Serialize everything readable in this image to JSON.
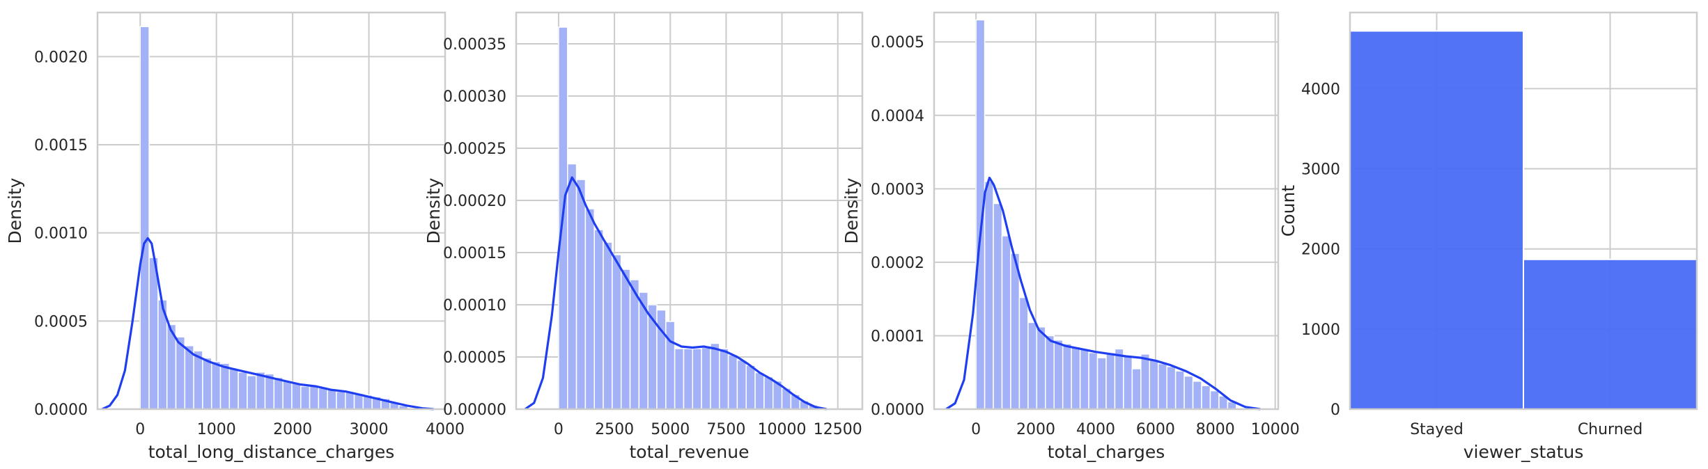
{
  "chart_data": [
    {
      "type": "bar",
      "subtype": "histogram+kde",
      "xlabel": "total_long_distance_charges",
      "ylabel": "Density",
      "xlim": [
        -560,
        4000
      ],
      "ylim": [
        0,
        0.00225
      ],
      "xticks": [
        0,
        1000,
        2000,
        3000,
        4000
      ],
      "xtick_labels": [
        "0",
        "1000",
        "2000",
        "3000",
        "4000"
      ],
      "yticks": [
        0,
        0.0005,
        0.001,
        0.0015,
        0.002
      ],
      "ytick_labels": [
        "0.0000",
        "0.0005",
        "0.0010",
        "0.0015",
        "0.0020"
      ],
      "grid": true,
      "bar_color": "#a3b2f7",
      "line_color": "#1f3ef0",
      "bin_width": 117,
      "bins": [
        {
          "x": 0,
          "v": 0.00217
        },
        {
          "x": 117,
          "v": 0.00086
        },
        {
          "x": 234,
          "v": 0.00062
        },
        {
          "x": 351,
          "v": 0.00048
        },
        {
          "x": 468,
          "v": 0.00041
        },
        {
          "x": 585,
          "v": 0.00036
        },
        {
          "x": 702,
          "v": 0.00033
        },
        {
          "x": 819,
          "v": 0.00029
        },
        {
          "x": 936,
          "v": 0.00027
        },
        {
          "x": 1053,
          "v": 0.00026
        },
        {
          "x": 1170,
          "v": 0.00023
        },
        {
          "x": 1287,
          "v": 0.00021
        },
        {
          "x": 1404,
          "v": 0.00019
        },
        {
          "x": 1521,
          "v": 0.00021
        },
        {
          "x": 1638,
          "v": 0.0002
        },
        {
          "x": 1755,
          "v": 0.00018
        },
        {
          "x": 1872,
          "v": 0.00016
        },
        {
          "x": 1989,
          "v": 0.00015
        },
        {
          "x": 2106,
          "v": 0.00013
        },
        {
          "x": 2223,
          "v": 0.00013
        },
        {
          "x": 2340,
          "v": 0.00012
        },
        {
          "x": 2457,
          "v": 0.00011
        },
        {
          "x": 2574,
          "v": 0.0001
        },
        {
          "x": 2691,
          "v": 0.0001
        },
        {
          "x": 2808,
          "v": 9e-05
        },
        {
          "x": 2925,
          "v": 8e-05
        },
        {
          "x": 3042,
          "v": 7e-05
        },
        {
          "x": 3159,
          "v": 6e-05
        },
        {
          "x": 3276,
          "v": 4e-05
        },
        {
          "x": 3393,
          "v": 2e-05
        }
      ],
      "kde": [
        [
          -500,
          0.0
        ],
        [
          -400,
          2e-05
        ],
        [
          -300,
          8e-05
        ],
        [
          -200,
          0.00022
        ],
        [
          -100,
          0.0005
        ],
        [
          0,
          0.00082
        ],
        [
          50,
          0.00094
        ],
        [
          100,
          0.00097
        ],
        [
          150,
          0.00094
        ],
        [
          200,
          0.00082
        ],
        [
          300,
          0.00057
        ],
        [
          400,
          0.00045
        ],
        [
          500,
          0.00038
        ],
        [
          700,
          0.00031
        ],
        [
          900,
          0.00027
        ],
        [
          1100,
          0.00024
        ],
        [
          1300,
          0.00022
        ],
        [
          1500,
          0.0002
        ],
        [
          1700,
          0.00018
        ],
        [
          1900,
          0.00016
        ],
        [
          2100,
          0.00014
        ],
        [
          2300,
          0.00013
        ],
        [
          2500,
          0.00011
        ],
        [
          2700,
          0.0001
        ],
        [
          2900,
          8e-05
        ],
        [
          3100,
          6e-05
        ],
        [
          3300,
          4e-05
        ],
        [
          3500,
          2e-05
        ],
        [
          3700,
          5e-06
        ],
        [
          3850,
          0.0
        ]
      ]
    },
    {
      "type": "bar",
      "subtype": "histogram+kde",
      "xlabel": "total_revenue",
      "ylabel": "Density",
      "xlim": [
        -1900,
        13600
      ],
      "ylim": [
        0,
        0.00038
      ],
      "xticks": [
        0,
        2500,
        5000,
        7500,
        10000,
        12500
      ],
      "xtick_labels": [
        "0",
        "2500",
        "5000",
        "7500",
        "10000",
        "12500"
      ],
      "yticks": [
        0,
        5e-05,
        0.0001,
        0.00015,
        0.0002,
        0.00025,
        0.0003,
        0.00035
      ],
      "ytick_labels": [
        "0.00000",
        "0.00005",
        "0.00010",
        "0.00015",
        "0.00020",
        "0.00025",
        "0.00030",
        "0.00035"
      ],
      "grid": true,
      "bar_color": "#a3b2f7",
      "line_color": "#1f3ef0",
      "bin_width": 400,
      "bins": [
        {
          "x": 0,
          "v": 0.000366
        },
        {
          "x": 400,
          "v": 0.000235
        },
        {
          "x": 800,
          "v": 0.00022
        },
        {
          "x": 1200,
          "v": 0.000192
        },
        {
          "x": 1600,
          "v": 0.000172
        },
        {
          "x": 2000,
          "v": 0.00016
        },
        {
          "x": 2400,
          "v": 0.000148
        },
        {
          "x": 2800,
          "v": 0.000134
        },
        {
          "x": 3200,
          "v": 0.000124
        },
        {
          "x": 3600,
          "v": 0.000112
        },
        {
          "x": 4000,
          "v": 0.0001
        },
        {
          "x": 4400,
          "v": 9.5e-05
        },
        {
          "x": 4800,
          "v": 8.4e-05
        },
        {
          "x": 5200,
          "v": 5.8e-05
        },
        {
          "x": 5600,
          "v": 5.8e-05
        },
        {
          "x": 6000,
          "v": 5.8e-05
        },
        {
          "x": 6400,
          "v": 5.9e-05
        },
        {
          "x": 6800,
          "v": 6.3e-05
        },
        {
          "x": 7200,
          "v": 5.8e-05
        },
        {
          "x": 7600,
          "v": 5.2e-05
        },
        {
          "x": 8000,
          "v": 4.7e-05
        },
        {
          "x": 8400,
          "v": 4.2e-05
        },
        {
          "x": 8800,
          "v": 3.5e-05
        },
        {
          "x": 9200,
          "v": 3.1e-05
        },
        {
          "x": 9600,
          "v": 2.7e-05
        },
        {
          "x": 10000,
          "v": 2e-05
        },
        {
          "x": 10400,
          "v": 1.4e-05
        },
        {
          "x": 10800,
          "v": 8e-06
        },
        {
          "x": 11200,
          "v": 4e-06
        }
      ],
      "kde": [
        [
          -1500,
          0.0
        ],
        [
          -1100,
          6e-06
        ],
        [
          -700,
          3e-05
        ],
        [
          -300,
          9e-05
        ],
        [
          0,
          0.00015
        ],
        [
          300,
          0.000205
        ],
        [
          600,
          0.000222
        ],
        [
          900,
          0.000212
        ],
        [
          1200,
          0.000196
        ],
        [
          1600,
          0.000178
        ],
        [
          2000,
          0.000163
        ],
        [
          2500,
          0.000145
        ],
        [
          3000,
          0.000127
        ],
        [
          3500,
          0.000109
        ],
        [
          4000,
          9.2e-05
        ],
        [
          4500,
          7.8e-05
        ],
        [
          5000,
          6.5e-05
        ],
        [
          5500,
          6e-05
        ],
        [
          6000,
          5.9e-05
        ],
        [
          6500,
          6e-05
        ],
        [
          7000,
          5.8e-05
        ],
        [
          7500,
          5.5e-05
        ],
        [
          8000,
          5e-05
        ],
        [
          8500,
          4.3e-05
        ],
        [
          9000,
          3.5e-05
        ],
        [
          9500,
          2.9e-05
        ],
        [
          10000,
          2.2e-05
        ],
        [
          10500,
          1.4e-05
        ],
        [
          11000,
          7e-06
        ],
        [
          11500,
          2e-06
        ],
        [
          12000,
          0.0
        ]
      ]
    },
    {
      "type": "bar",
      "subtype": "histogram+kde",
      "xlabel": "total_charges",
      "ylabel": "Density",
      "xlim": [
        -1400,
        10100
      ],
      "ylim": [
        0,
        0.00054
      ],
      "xticks": [
        0,
        2000,
        4000,
        6000,
        8000,
        10000
      ],
      "xtick_labels": [
        "0",
        "2000",
        "4000",
        "6000",
        "8000",
        "10000"
      ],
      "yticks": [
        0,
        0.0001,
        0.0002,
        0.0003,
        0.0004,
        0.0005
      ],
      "ytick_labels": [
        "0.0000",
        "0.0001",
        "0.0002",
        "0.0003",
        "0.0004",
        "0.0005"
      ],
      "grid": true,
      "bar_color": "#a3b2f7",
      "line_color": "#1f3ef0",
      "bin_width": 290,
      "bins": [
        {
          "x": 0,
          "v": 0.00053
        },
        {
          "x": 290,
          "v": 0.00031
        },
        {
          "x": 580,
          "v": 0.00028
        },
        {
          "x": 870,
          "v": 0.000236
        },
        {
          "x": 1160,
          "v": 0.000212
        },
        {
          "x": 1450,
          "v": 0.000152
        },
        {
          "x": 1740,
          "v": 0.000118
        },
        {
          "x": 2030,
          "v": 0.000112
        },
        {
          "x": 2320,
          "v": 0.0001
        },
        {
          "x": 2610,
          "v": 9.4e-05
        },
        {
          "x": 2900,
          "v": 8.9e-05
        },
        {
          "x": 3190,
          "v": 8.5e-05
        },
        {
          "x": 3480,
          "v": 8.2e-05
        },
        {
          "x": 3770,
          "v": 7.7e-05
        },
        {
          "x": 4060,
          "v": 7e-05
        },
        {
          "x": 4350,
          "v": 7.7e-05
        },
        {
          "x": 4640,
          "v": 8.2e-05
        },
        {
          "x": 4930,
          "v": 7.2e-05
        },
        {
          "x": 5220,
          "v": 5.5e-05
        },
        {
          "x": 5510,
          "v": 7.5e-05
        },
        {
          "x": 5800,
          "v": 6.7e-05
        },
        {
          "x": 6090,
          "v": 6.2e-05
        },
        {
          "x": 6380,
          "v": 5.8e-05
        },
        {
          "x": 6670,
          "v": 5.2e-05
        },
        {
          "x": 6960,
          "v": 4.5e-05
        },
        {
          "x": 7250,
          "v": 3.8e-05
        },
        {
          "x": 7540,
          "v": 3.2e-05
        },
        {
          "x": 7830,
          "v": 2.5e-05
        },
        {
          "x": 8120,
          "v": 1.8e-05
        },
        {
          "x": 8410,
          "v": 1e-05
        }
      ],
      "kde": [
        [
          -1000,
          0.0
        ],
        [
          -700,
          8e-06
        ],
        [
          -400,
          4e-05
        ],
        [
          -100,
          0.00013
        ],
        [
          100,
          0.00022
        ],
        [
          300,
          0.000295
        ],
        [
          450,
          0.000315
        ],
        [
          600,
          0.000305
        ],
        [
          900,
          0.00027
        ],
        [
          1200,
          0.00022
        ],
        [
          1500,
          0.000175
        ],
        [
          1800,
          0.000135
        ],
        [
          2100,
          0.000108
        ],
        [
          2500,
          9.3e-05
        ],
        [
          3000,
          8.6e-05
        ],
        [
          3500,
          8.2e-05
        ],
        [
          4000,
          7.8e-05
        ],
        [
          4500,
          7.5e-05
        ],
        [
          5000,
          7.2e-05
        ],
        [
          5500,
          7e-05
        ],
        [
          6000,
          6.6e-05
        ],
        [
          6500,
          6e-05
        ],
        [
          7000,
          5.2e-05
        ],
        [
          7500,
          4.2e-05
        ],
        [
          8000,
          2.8e-05
        ],
        [
          8500,
          1.2e-05
        ],
        [
          9000,
          3e-06
        ],
        [
          9500,
          0.0
        ]
      ]
    },
    {
      "type": "bar",
      "subtype": "countplot",
      "xlabel": "viewer_status",
      "ylabel": "Count",
      "categories": [
        "Stayed",
        "Churned"
      ],
      "values": [
        4720,
        1869
      ],
      "ylim": [
        0,
        4950
      ],
      "yticks": [
        0,
        1000,
        2000,
        3000,
        4000
      ],
      "ytick_labels": [
        "0",
        "1000",
        "2000",
        "3000",
        "4000"
      ],
      "grid": true,
      "bar_color": "#4a6cf5"
    }
  ]
}
